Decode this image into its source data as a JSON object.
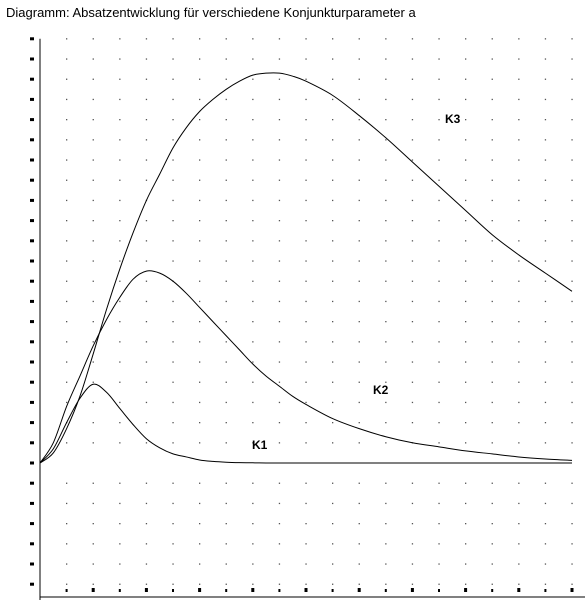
{
  "title": "Diagramm: Absatzentwicklung für verschiedene Konjunkturparameter  a",
  "chart_data": {
    "type": "line",
    "title": "Diagramm: Absatzentwicklung für verschiedene Konjunkturparameter  a",
    "xlabel": "",
    "ylabel": "",
    "xlim": [
      0,
      20
    ],
    "ylim": [
      -7,
      21
    ],
    "grid": true,
    "grid_style": "dotted",
    "x_ticks": [
      2,
      4,
      6,
      8,
      10,
      12,
      14,
      16,
      18,
      20
    ],
    "x": [
      0,
      0.5,
      1,
      1.5,
      2,
      2.5,
      3,
      3.5,
      4,
      4.5,
      5,
      5.5,
      6,
      6.5,
      7,
      7.5,
      8,
      8.5,
      9,
      9.5,
      10,
      11,
      12,
      13,
      14,
      15,
      16,
      17,
      18,
      19,
      20
    ],
    "series": [
      {
        "name": "K1",
        "values": [
          0,
          0.7,
          2.0,
          3.2,
          3.9,
          3.5,
          2.7,
          1.9,
          1.2,
          0.75,
          0.45,
          0.3,
          0.15,
          0.08,
          0.04,
          0.02,
          0.01,
          0,
          0,
          0,
          0,
          0,
          0,
          0,
          0,
          0,
          0,
          0,
          0,
          0,
          0
        ]
      },
      {
        "name": "K2",
        "values": [
          0,
          1.0,
          2.8,
          4.3,
          5.8,
          7.1,
          8.2,
          9.1,
          9.5,
          9.4,
          9.0,
          8.4,
          7.7,
          7.0,
          6.3,
          5.6,
          4.9,
          4.3,
          3.8,
          3.3,
          2.9,
          2.2,
          1.7,
          1.3,
          1.0,
          0.8,
          0.6,
          0.45,
          0.3,
          0.2,
          0.13
        ]
      },
      {
        "name": "K3",
        "values": [
          0,
          0.5,
          1.7,
          3.3,
          5.4,
          7.6,
          9.6,
          11.4,
          13.0,
          14.3,
          15.6,
          16.6,
          17.4,
          18.0,
          18.5,
          18.9,
          19.2,
          19.3,
          19.3,
          19.15,
          18.9,
          18.2,
          17.2,
          16.1,
          14.9,
          13.7,
          12.5,
          11.3,
          10.3,
          9.4,
          8.5
        ]
      }
    ]
  }
}
